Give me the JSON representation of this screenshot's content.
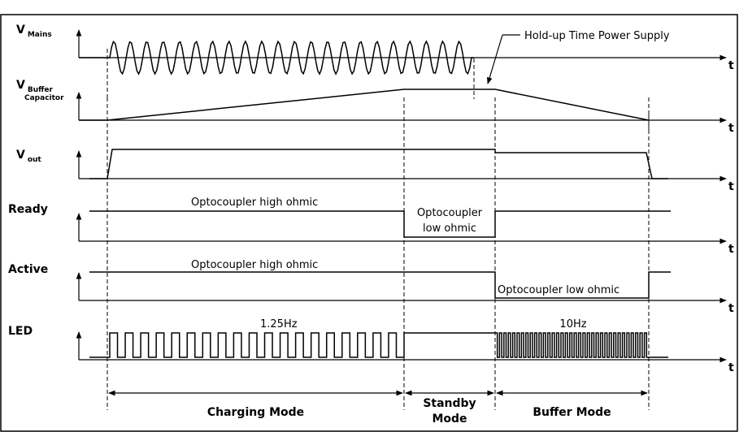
{
  "diagram": {
    "signals": [
      {
        "name": "V",
        "sub": [
          "Mains"
        ]
      },
      {
        "name": "V",
        "sub": [
          "Buffer",
          "Capacitor"
        ]
      },
      {
        "name": "V",
        "sub": [
          "out"
        ]
      },
      {
        "name": "Ready",
        "sub": []
      },
      {
        "name": "Active",
        "sub": []
      },
      {
        "name": "LED",
        "sub": []
      }
    ],
    "axis_label": "t",
    "annotations": {
      "holdup": "Hold-up Time Power Supply",
      "ready_high": "Optocoupler high ohmic",
      "ready_low": [
        "Optocoupler",
        "low ohmic"
      ],
      "active_high": "Optocoupler high ohmic",
      "active_low": "Optocoupler low ohmic",
      "led_slow": "1.25Hz",
      "led_fast": "10Hz"
    },
    "modes": [
      [
        "Charging Mode"
      ],
      [
        "Standby",
        "Mode"
      ],
      [
        "Buffer Mode"
      ]
    ]
  }
}
